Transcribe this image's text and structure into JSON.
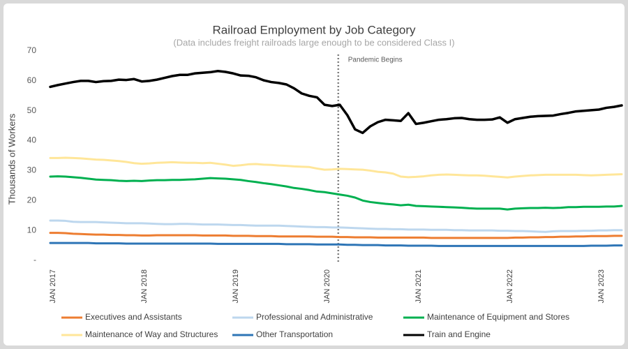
{
  "chart_data": {
    "type": "line",
    "title": "Railroad Employment by Job Category",
    "subtitle": "(Data includes freight railroads large enough to be considered Class I)",
    "y_label": "Thousands of Workers",
    "annotation": "Pandemic Begins",
    "ylim": [
      0,
      70
    ],
    "yticks": [
      {
        "value": 0,
        "label": "-"
      },
      10,
      20,
      30,
      40,
      50,
      60,
      70
    ],
    "grid": false,
    "legend": "bottom",
    "categories": [
      "JAN 2017",
      null,
      null,
      null,
      null,
      null,
      null,
      null,
      null,
      null,
      null,
      null,
      "JAN 2018",
      null,
      null,
      null,
      null,
      null,
      null,
      null,
      null,
      null,
      null,
      null,
      "JAN 2019",
      null,
      null,
      null,
      null,
      null,
      null,
      null,
      null,
      null,
      null,
      null,
      "JAN 2020",
      null,
      null,
      null,
      null,
      null,
      null,
      null,
      null,
      null,
      null,
      null,
      "JAN 2021",
      null,
      null,
      null,
      null,
      null,
      null,
      null,
      null,
      null,
      null,
      null,
      "JAN 2022",
      null,
      null,
      null,
      null,
      null,
      null,
      null,
      null,
      null,
      null,
      null,
      "JAN 2023",
      null,
      null,
      null
    ],
    "series": [
      {
        "name": "Executives and Assistants",
        "color": "#ed7d31",
        "values": [
          9.2,
          9.2,
          9.1,
          8.9,
          8.8,
          8.7,
          8.6,
          8.6,
          8.5,
          8.5,
          8.4,
          8.4,
          8.3,
          8.3,
          8.4,
          8.4,
          8.4,
          8.4,
          8.4,
          8.4,
          8.3,
          8.3,
          8.3,
          8.3,
          8.2,
          8.2,
          8.2,
          8.1,
          8.1,
          8.1,
          8.0,
          8.0,
          8.0,
          8.0,
          8.0,
          7.9,
          7.9,
          7.9,
          7.8,
          7.8,
          7.7,
          7.7,
          7.7,
          7.6,
          7.6,
          7.6,
          7.6,
          7.6,
          7.6,
          7.6,
          7.5,
          7.5,
          7.5,
          7.5,
          7.5,
          7.5,
          7.5,
          7.5,
          7.5,
          7.5,
          7.5,
          7.6,
          7.6,
          7.7,
          7.7,
          7.8,
          7.8,
          7.9,
          7.9,
          8.0,
          8.0,
          8.1,
          8.1,
          8.1,
          8.2,
          8.2
        ]
      },
      {
        "name": "Professional and Administrative",
        "color": "#bdd7ee",
        "values": [
          13.3,
          13.3,
          13.2,
          12.9,
          12.8,
          12.8,
          12.8,
          12.7,
          12.6,
          12.5,
          12.4,
          12.4,
          12.4,
          12.3,
          12.2,
          12.1,
          12.1,
          12.2,
          12.2,
          12.1,
          12.0,
          12.0,
          12.0,
          11.9,
          11.8,
          11.8,
          11.7,
          11.6,
          11.6,
          11.6,
          11.6,
          11.5,
          11.4,
          11.3,
          11.2,
          11.1,
          11.1,
          11.0,
          11.0,
          10.9,
          10.8,
          10.7,
          10.6,
          10.5,
          10.5,
          10.4,
          10.4,
          10.3,
          10.3,
          10.3,
          10.2,
          10.2,
          10.2,
          10.1,
          10.1,
          10.0,
          10.0,
          10.0,
          10.0,
          9.9,
          9.9,
          9.8,
          9.8,
          9.7,
          9.6,
          9.5,
          9.7,
          9.8,
          9.8,
          9.8,
          9.9,
          9.9,
          10.0,
          10.0,
          10.1,
          10.1
        ]
      },
      {
        "name": "Maintenance of Equipment and Stores",
        "color": "#00b050",
        "values": [
          28.0,
          28.1,
          28.0,
          27.8,
          27.6,
          27.3,
          27.0,
          26.9,
          26.8,
          26.6,
          26.5,
          26.6,
          26.5,
          26.7,
          26.8,
          26.8,
          26.9,
          26.9,
          27.0,
          27.1,
          27.3,
          27.5,
          27.4,
          27.3,
          27.1,
          26.9,
          26.5,
          26.2,
          25.8,
          25.5,
          25.1,
          24.7,
          24.2,
          23.9,
          23.5,
          23.0,
          22.8,
          22.4,
          22.0,
          21.6,
          21.0,
          20.0,
          19.5,
          19.2,
          18.9,
          18.7,
          18.4,
          18.6,
          18.2,
          18.1,
          18.0,
          17.9,
          17.8,
          17.7,
          17.6,
          17.4,
          17.3,
          17.3,
          17.3,
          17.3,
          17.0,
          17.3,
          17.4,
          17.5,
          17.5,
          17.6,
          17.5,
          17.6,
          17.8,
          17.8,
          17.9,
          17.9,
          17.9,
          18.0,
          18.0,
          18.2
        ]
      },
      {
        "name": "Maintenance of Way and Structures",
        "color": "#ffe699",
        "values": [
          34.2,
          34.2,
          34.3,
          34.2,
          34.1,
          33.9,
          33.7,
          33.6,
          33.4,
          33.2,
          32.9,
          32.5,
          32.3,
          32.4,
          32.6,
          32.7,
          32.8,
          32.7,
          32.6,
          32.6,
          32.5,
          32.6,
          32.3,
          32.0,
          31.6,
          31.8,
          32.1,
          32.2,
          32.0,
          31.9,
          31.7,
          31.6,
          31.4,
          31.3,
          31.2,
          30.7,
          30.3,
          30.4,
          30.6,
          30.5,
          30.4,
          30.3,
          30.0,
          29.6,
          29.4,
          29.0,
          28.0,
          27.8,
          27.9,
          28.1,
          28.4,
          28.6,
          28.7,
          28.6,
          28.5,
          28.4,
          28.4,
          28.3,
          28.1,
          27.9,
          27.7,
          28.0,
          28.2,
          28.4,
          28.5,
          28.6,
          28.6,
          28.6,
          28.6,
          28.6,
          28.5,
          28.4,
          28.5,
          28.6,
          28.7,
          28.8
        ]
      },
      {
        "name": "Other Transportation",
        "color": "#2e75b6",
        "values": [
          5.8,
          5.8,
          5.8,
          5.8,
          5.8,
          5.8,
          5.7,
          5.7,
          5.7,
          5.7,
          5.6,
          5.6,
          5.6,
          5.6,
          5.6,
          5.6,
          5.6,
          5.6,
          5.6,
          5.6,
          5.6,
          5.6,
          5.5,
          5.5,
          5.5,
          5.5,
          5.5,
          5.5,
          5.5,
          5.5,
          5.5,
          5.4,
          5.4,
          5.4,
          5.4,
          5.3,
          5.3,
          5.3,
          5.3,
          5.2,
          5.2,
          5.1,
          5.1,
          5.1,
          5.0,
          5.0,
          5.0,
          4.9,
          4.9,
          4.9,
          4.9,
          4.8,
          4.8,
          4.8,
          4.8,
          4.8,
          4.8,
          4.8,
          4.8,
          4.8,
          4.8,
          4.8,
          4.8,
          4.8,
          4.8,
          4.8,
          4.8,
          4.8,
          4.8,
          4.8,
          4.8,
          4.9,
          4.9,
          4.9,
          5.0,
          5.0
        ]
      },
      {
        "name": "Train and Engine",
        "color": "#000000",
        "values": [
          58.0,
          58.6,
          59.1,
          59.6,
          60.0,
          60.0,
          59.6,
          59.9,
          60.0,
          60.4,
          60.3,
          60.6,
          59.8,
          60.0,
          60.4,
          61.0,
          61.6,
          62.0,
          62.0,
          62.5,
          62.7,
          62.9,
          63.3,
          63.0,
          62.5,
          61.8,
          61.7,
          61.2,
          60.2,
          59.6,
          59.3,
          58.8,
          57.5,
          55.8,
          55.0,
          54.5,
          52.0,
          51.6,
          52.0,
          48.5,
          43.8,
          42.6,
          44.8,
          46.2,
          47.0,
          46.8,
          46.6,
          49.2,
          45.6,
          46.0,
          46.5,
          47.0,
          47.2,
          47.5,
          47.6,
          47.2,
          47.0,
          47.0,
          47.1,
          47.8,
          46.0,
          47.2,
          47.6,
          48.0,
          48.2,
          48.3,
          48.4,
          48.9,
          49.3,
          49.8,
          50.0,
          50.2,
          50.4,
          51.0,
          51.3,
          51.8
        ]
      }
    ]
  }
}
